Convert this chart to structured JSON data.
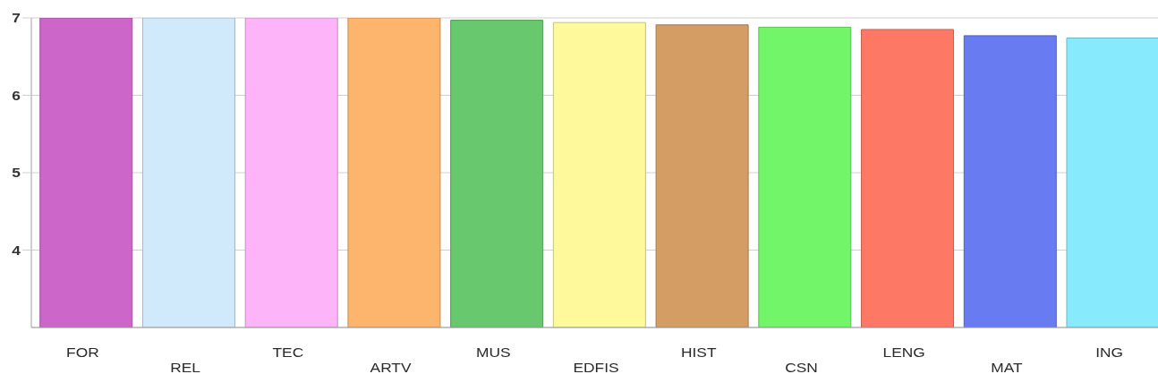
{
  "chart_data": {
    "type": "bar",
    "categories": [
      "FOR",
      "REL",
      "TEC",
      "ARTV",
      "MUS",
      "EDFIS",
      "HIST",
      "CSN",
      "LENG",
      "MAT",
      "ING"
    ],
    "values": [
      7,
      7,
      7,
      7,
      6.97,
      6.94,
      6.91,
      6.88,
      6.85,
      6.77,
      6.74
    ],
    "colors": [
      "#cc66c9",
      "#d0eafc",
      "#fdb4f8",
      "#fdb46c",
      "#68c86e",
      "#fef99a",
      "#d49d64",
      "#73f56a",
      "#fe7866",
      "#687bf0",
      "#88eafd"
    ],
    "ylim": [
      3,
      7
    ],
    "yticks": [
      4,
      5,
      6,
      7
    ],
    "grid": "y"
  }
}
